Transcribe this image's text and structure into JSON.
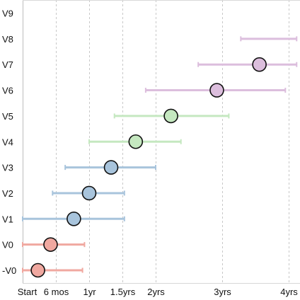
{
  "chart_data": {
    "type": "range-dot",
    "title": "",
    "xlabel": "",
    "ylabel": "",
    "xlim": [
      0,
      4.12
    ],
    "x_unit": "years",
    "x_ticks": [
      {
        "value": 0,
        "label": "Start"
      },
      {
        "value": 0.5,
        "label": "6 mos"
      },
      {
        "value": 1,
        "label": "1yr"
      },
      {
        "value": 1.5,
        "label": "1.5yrs"
      },
      {
        "value": 2,
        "label": "2yrs"
      },
      {
        "value": 3,
        "label": "3yrs"
      },
      {
        "value": 4,
        "label": "4yrs"
      }
    ],
    "grid": {
      "vertical": true,
      "style": "dashed"
    },
    "categories": [
      "-V0",
      "V0",
      "V1",
      "V2",
      "V3",
      "V4",
      "V5",
      "V6",
      "V7",
      "V8",
      "V9"
    ],
    "points": [
      {
        "grade": "-V0",
        "low": 0.0,
        "mid": 0.23,
        "high": 0.9,
        "color": "#f0a8a0"
      },
      {
        "grade": "V0",
        "low": 0.0,
        "mid": 0.42,
        "high": 0.93,
        "color": "#f0a8a0"
      },
      {
        "grade": "V1",
        "low": 0.0,
        "mid": 0.77,
        "high": 1.53,
        "color": "#a8c4dc"
      },
      {
        "grade": "V2",
        "low": 0.45,
        "mid": 1.0,
        "high": 1.53,
        "color": "#a8c4dc"
      },
      {
        "grade": "V3",
        "low": 0.64,
        "mid": 1.33,
        "high": 2.0,
        "color": "#a8c4dc"
      },
      {
        "grade": "V4",
        "low": 1.0,
        "mid": 1.7,
        "high": 2.38,
        "color": "#c5e8c0"
      },
      {
        "grade": "V5",
        "low": 1.38,
        "mid": 2.23,
        "high": 3.1,
        "color": "#c5e8c0"
      },
      {
        "grade": "V6",
        "low": 1.85,
        "mid": 2.92,
        "high": 3.95,
        "color": "#dcbedd"
      },
      {
        "grade": "V7",
        "low": 2.64,
        "mid": 3.56,
        "high": 4.12,
        "color": "#dcbedd"
      },
      {
        "grade": "V8",
        "low": 3.28,
        "mid": null,
        "high": 4.12,
        "color": "#dcbedd"
      },
      {
        "grade": "V9",
        "low": null,
        "mid": null,
        "high": null,
        "color": "#dcbedd"
      }
    ]
  }
}
